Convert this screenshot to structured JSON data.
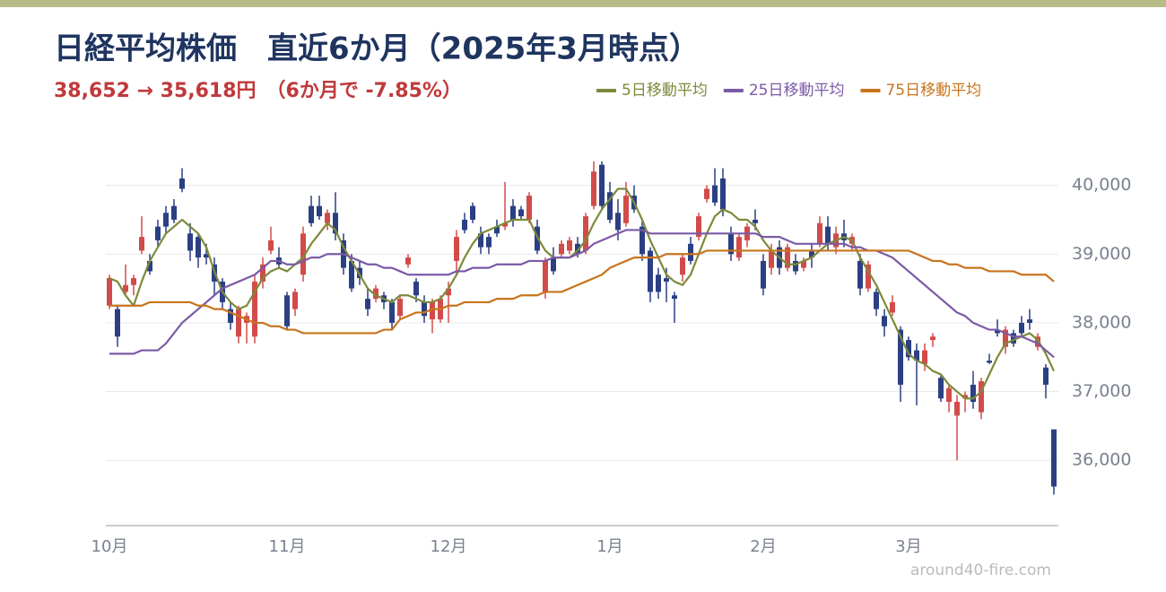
{
  "chart_data": {
    "type": "candlestick",
    "title": "日経平均株価　直近6か月（2025年3月時点）",
    "subtitle": "38,652 → 35,618円　（6か月で -7.85%）",
    "source": "around40-fire.com",
    "categories": [
      "10月",
      null,
      null,
      null,
      null,
      null,
      null,
      null,
      null,
      null,
      null,
      null,
      null,
      null,
      null,
      null,
      null,
      null,
      null,
      null,
      null,
      null,
      "11月",
      null,
      null,
      null,
      null,
      null,
      null,
      null,
      null,
      null,
      null,
      null,
      null,
      null,
      null,
      null,
      null,
      null,
      null,
      null,
      "12月",
      null,
      null,
      null,
      null,
      null,
      null,
      null,
      null,
      null,
      null,
      null,
      null,
      null,
      null,
      null,
      null,
      null,
      null,
      null,
      "1月",
      null,
      null,
      null,
      null,
      null,
      null,
      null,
      null,
      null,
      null,
      null,
      null,
      null,
      null,
      null,
      null,
      null,
      null,
      "2月",
      null,
      null,
      null,
      null,
      null,
      null,
      null,
      null,
      null,
      null,
      null,
      null,
      null,
      null,
      null,
      null,
      null,
      "3月",
      null,
      null,
      null,
      null,
      null,
      null,
      null,
      null,
      null,
      null,
      null,
      null,
      null,
      null,
      null,
      null,
      null,
      null
    ],
    "open": [
      38250,
      38200,
      38450,
      38550,
      39050,
      38900,
      39400,
      39600,
      39700,
      40100,
      39300,
      39250,
      39000,
      38850,
      38600,
      38200,
      37800,
      38000,
      37800,
      38600,
      39050,
      38950,
      38400,
      38200,
      38700,
      39700,
      39700,
      39450,
      39600,
      39200,
      38900,
      38800,
      38350,
      38350,
      38400,
      38300,
      38100,
      38850,
      38600,
      38300,
      38050,
      38050,
      38400,
      38900,
      39500,
      39700,
      39300,
      39250,
      39400,
      39400,
      39700,
      39650,
      39500,
      39400,
      38450,
      38950,
      39000,
      39050,
      39150,
      39050,
      39700,
      40300,
      39900,
      39600,
      39450,
      39850,
      39400,
      39050,
      38700,
      38650,
      38400,
      38700,
      39150,
      39250,
      39800,
      40000,
      40100,
      39300,
      38950,
      39200,
      39500,
      38900,
      38800,
      39100,
      38800,
      38900,
      38800,
      39050,
      39150,
      39400,
      39100,
      39300,
      39150,
      38900,
      38500,
      38450,
      38100,
      38150,
      37900,
      37750,
      37600,
      37400,
      37750,
      37200,
      36850,
      36650,
      36900,
      37100,
      36700,
      37450,
      37900,
      37650,
      37850,
      38000,
      38050,
      37650,
      37350,
      36450
    ],
    "high": [
      38700,
      38250,
      38850,
      38700,
      39550,
      39000,
      39500,
      39700,
      39800,
      40250,
      39450,
      39300,
      39150,
      38950,
      38650,
      38300,
      38250,
      38150,
      38700,
      38950,
      39400,
      39100,
      38450,
      38500,
      39400,
      39850,
      39850,
      39650,
      39900,
      39300,
      39000,
      38900,
      38500,
      38550,
      38450,
      38350,
      38400,
      39000,
      38650,
      38400,
      38350,
      38400,
      38600,
      39350,
      39600,
      39750,
      39400,
      39300,
      39500,
      40050,
      39800,
      39700,
      39900,
      39500,
      38950,
      39100,
      39200,
      39250,
      39250,
      39600,
      40350,
      40350,
      40050,
      39800,
      40050,
      40000,
      39500,
      39100,
      38800,
      38800,
      38450,
      39000,
      39250,
      39600,
      40000,
      40250,
      40250,
      39400,
      39300,
      39450,
      39650,
      39000,
      39150,
      39200,
      39150,
      39000,
      38950,
      39150,
      39550,
      39550,
      39400,
      39500,
      39300,
      39000,
      38900,
      38500,
      38200,
      38400,
      37950,
      37800,
      37700,
      37700,
      37850,
      37250,
      37100,
      36950,
      37000,
      37300,
      37200,
      37550,
      38050,
      37950,
      37900,
      38100,
      38200,
      37850,
      37400,
      36450
    ],
    "low": [
      38200,
      37650,
      38400,
      38400,
      39000,
      38700,
      39100,
      39300,
      39450,
      39900,
      38900,
      38800,
      38850,
      38400,
      38200,
      37900,
      37700,
      37700,
      37700,
      38500,
      39000,
      38800,
      37900,
      38100,
      38600,
      39400,
      39500,
      39350,
      39200,
      38700,
      38450,
      38550,
      38100,
      38300,
      38200,
      37900,
      38050,
      38800,
      38300,
      38000,
      37850,
      38000,
      38000,
      38700,
      39300,
      39450,
      39000,
      39000,
      39250,
      39350,
      39400,
      39500,
      39450,
      39000,
      38350,
      38700,
      38950,
      39000,
      38950,
      39000,
      39650,
      39650,
      39450,
      39200,
      39400,
      39600,
      38900,
      38300,
      38350,
      38300,
      38000,
      38600,
      38850,
      39200,
      39750,
      39700,
      39550,
      38900,
      38900,
      39100,
      39350,
      38400,
      38700,
      38700,
      38750,
      38700,
      38750,
      38800,
      39100,
      39050,
      39000,
      39100,
      39050,
      38400,
      38450,
      38100,
      37800,
      38100,
      36850,
      37450,
      36800,
      37300,
      37650,
      36850,
      36700,
      36000,
      36700,
      36750,
      36600,
      37400,
      37800,
      37550,
      37650,
      37800,
      37900,
      37600,
      36900,
      35500
    ],
    "close": [
      38652,
      37800,
      38550,
      38650,
      39250,
      38750,
      39200,
      39400,
      39500,
      39950,
      39050,
      38950,
      38950,
      38600,
      38300,
      38000,
      38200,
      38100,
      38600,
      38850,
      39200,
      38850,
      37950,
      38450,
      39300,
      39450,
      39550,
      39600,
      39300,
      38800,
      38500,
      38650,
      38200,
      38500,
      38300,
      38000,
      38350,
      38950,
      38400,
      38100,
      38300,
      38350,
      38500,
      39250,
      39350,
      39500,
      39100,
      39100,
      39300,
      39450,
      39500,
      39550,
      39850,
      39050,
      38900,
      38750,
      39150,
      39200,
      39000,
      39550,
      40200,
      39700,
      39500,
      39350,
      39850,
      39650,
      39000,
      38450,
      38450,
      38600,
      38350,
      38950,
      38900,
      39550,
      39950,
      39750,
      39650,
      39000,
      39250,
      39400,
      39450,
      38500,
      39050,
      38800,
      39100,
      38750,
      38900,
      38950,
      39450,
      39150,
      39300,
      39200,
      39250,
      38500,
      38850,
      38200,
      37950,
      38300,
      37100,
      37500,
      37450,
      37600,
      37800,
      36900,
      37050,
      36850,
      36950,
      36850,
      37150,
      37420,
      37850,
      37900,
      37700,
      37850,
      38000,
      37800,
      37100,
      35618
    ],
    "up_color": "#d24b4b",
    "down_color": "#2b3f83",
    "series": [
      {
        "name": "5日移動平均",
        "color": "#7d8a3a",
        "values": [
          38650,
          38600,
          38400,
          38250,
          38600,
          38900,
          39100,
          39300,
          39400,
          39500,
          39400,
          39300,
          39100,
          38750,
          38450,
          38300,
          38200,
          38250,
          38450,
          38650,
          38750,
          38800,
          38750,
          38850,
          38950,
          39150,
          39300,
          39450,
          39350,
          39100,
          38900,
          38700,
          38500,
          38400,
          38350,
          38300,
          38400,
          38400,
          38350,
          38300,
          38300,
          38350,
          38500,
          38700,
          38950,
          39150,
          39300,
          39350,
          39400,
          39450,
          39500,
          39500,
          39500,
          39250,
          39050,
          38950,
          38950,
          38950,
          39050,
          39200,
          39450,
          39650,
          39800,
          39950,
          39950,
          39750,
          39500,
          39200,
          38950,
          38700,
          38600,
          38550,
          38700,
          39000,
          39300,
          39550,
          39650,
          39600,
          39500,
          39500,
          39400,
          39200,
          39050,
          38950,
          38850,
          38850,
          38900,
          38950,
          39050,
          39150,
          39200,
          39250,
          39200,
          38950,
          38750,
          38550,
          38300,
          38050,
          37800,
          37550,
          37450,
          37400,
          37300,
          37250,
          37100,
          37000,
          36900,
          36900,
          37000,
          37250,
          37500,
          37700,
          37750,
          37800,
          37850,
          37750,
          37550,
          37300
        ]
      },
      {
        "name": "25日移動平均",
        "color": "#7b5aa6",
        "values": [
          37550,
          37550,
          37550,
          37550,
          37600,
          37600,
          37600,
          37700,
          37850,
          38000,
          38100,
          38200,
          38300,
          38400,
          38500,
          38550,
          38600,
          38650,
          38700,
          38800,
          38900,
          38900,
          38850,
          38850,
          38900,
          38950,
          38950,
          39000,
          39000,
          39000,
          38950,
          38900,
          38850,
          38850,
          38800,
          38800,
          38750,
          38700,
          38700,
          38700,
          38700,
          38700,
          38700,
          38750,
          38750,
          38800,
          38800,
          38800,
          38850,
          38850,
          38850,
          38850,
          38900,
          38900,
          38900,
          38950,
          38950,
          38950,
          39000,
          39050,
          39150,
          39200,
          39250,
          39300,
          39350,
          39350,
          39350,
          39300,
          39300,
          39300,
          39300,
          39300,
          39300,
          39300,
          39300,
          39300,
          39300,
          39300,
          39300,
          39300,
          39300,
          39250,
          39250,
          39250,
          39200,
          39150,
          39150,
          39150,
          39150,
          39150,
          39150,
          39150,
          39100,
          39100,
          39050,
          39050,
          39000,
          38950,
          38850,
          38750,
          38650,
          38550,
          38450,
          38350,
          38250,
          38150,
          38100,
          38000,
          37950,
          37900,
          37900,
          37850,
          37800,
          37800,
          37750,
          37700,
          37600,
          37500
        ]
      },
      {
        "name": "75日移動平均",
        "color": "#c8741c",
        "values": [
          38250,
          38250,
          38250,
          38250,
          38250,
          38300,
          38300,
          38300,
          38300,
          38300,
          38300,
          38250,
          38250,
          38200,
          38200,
          38150,
          38100,
          38050,
          38000,
          38000,
          37950,
          37950,
          37900,
          37900,
          37850,
          37850,
          37850,
          37850,
          37850,
          37850,
          37850,
          37850,
          37850,
          37850,
          37900,
          37900,
          38050,
          38100,
          38150,
          38150,
          38200,
          38200,
          38250,
          38250,
          38300,
          38300,
          38300,
          38300,
          38350,
          38350,
          38350,
          38400,
          38400,
          38400,
          38450,
          38450,
          38450,
          38500,
          38550,
          38600,
          38650,
          38700,
          38800,
          38850,
          38900,
          38950,
          38950,
          38950,
          38950,
          39000,
          39000,
          39000,
          39000,
          39000,
          39050,
          39050,
          39050,
          39050,
          39050,
          39050,
          39050,
          39050,
          39050,
          39050,
          39050,
          39050,
          39050,
          39050,
          39050,
          39050,
          39050,
          39050,
          39050,
          39050,
          39050,
          39050,
          39050,
          39050,
          39050,
          39050,
          39000,
          38950,
          38900,
          38900,
          38850,
          38850,
          38800,
          38800,
          38800,
          38750,
          38750,
          38750,
          38750,
          38700,
          38700,
          38700,
          38700,
          38600
        ]
      }
    ],
    "ylim": [
      35050,
      40700
    ],
    "yticks": [
      {
        "value": 36000,
        "label": "36,000"
      },
      {
        "value": 37000,
        "label": "37,000"
      },
      {
        "value": 38000,
        "label": "38,000"
      },
      {
        "value": 39000,
        "label": "39,000"
      },
      {
        "value": 40000,
        "label": "40,000"
      }
    ],
    "grid": true,
    "legend": "top-right"
  }
}
